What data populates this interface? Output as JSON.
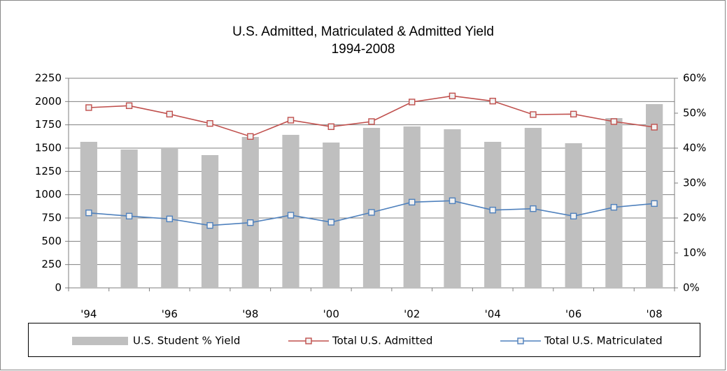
{
  "chart_data": {
    "type": "combo",
    "title": "U.S. Admitted, Matriculated & Admitted Yield",
    "subtitle": "1994-2008",
    "categories": [
      "'94",
      null,
      "'96",
      null,
      "'98",
      null,
      "'00",
      null,
      "'02",
      null,
      "'04",
      null,
      "'06",
      null,
      "'08"
    ],
    "series": [
      {
        "name": "U.S. Student % Yield",
        "type": "bar",
        "axis": "y2",
        "color": "#bfbfbf",
        "values": [
          41.8,
          39.6,
          39.8,
          38.0,
          43.2,
          43.8,
          41.6,
          45.8,
          46.2,
          45.4,
          41.8,
          45.8,
          41.4,
          48.6,
          52.6
        ]
      },
      {
        "name": "Total U.S. Admitted",
        "type": "line",
        "color": "#c0504d",
        "values": [
          1935,
          1955,
          1865,
          1765,
          1625,
          1800,
          1730,
          1785,
          1995,
          2060,
          2005,
          1860,
          1865,
          1785,
          1725
        ]
      },
      {
        "name": "Total U.S. Matriculated",
        "type": "line",
        "color": "#4f81bd",
        "values": [
          805,
          770,
          740,
          670,
          700,
          780,
          705,
          810,
          920,
          935,
          835,
          850,
          770,
          865,
          905
        ]
      }
    ],
    "ylim": [
      0,
      2250
    ],
    "yticks": [
      0,
      250,
      500,
      750,
      1000,
      1250,
      1500,
      1750,
      2000,
      2250
    ],
    "y2lim": [
      0,
      60
    ],
    "y2ticks": [
      {
        "value": 0,
        "label": "0%"
      },
      {
        "value": 10,
        "label": "10%"
      },
      {
        "value": 20,
        "label": "20%"
      },
      {
        "value": 30,
        "label": "30%"
      },
      {
        "value": 40,
        "label": "40%"
      },
      {
        "value": 50,
        "label": "50%"
      },
      {
        "value": 60,
        "label": "60%"
      }
    ],
    "grid": true,
    "legend": "bottom"
  }
}
